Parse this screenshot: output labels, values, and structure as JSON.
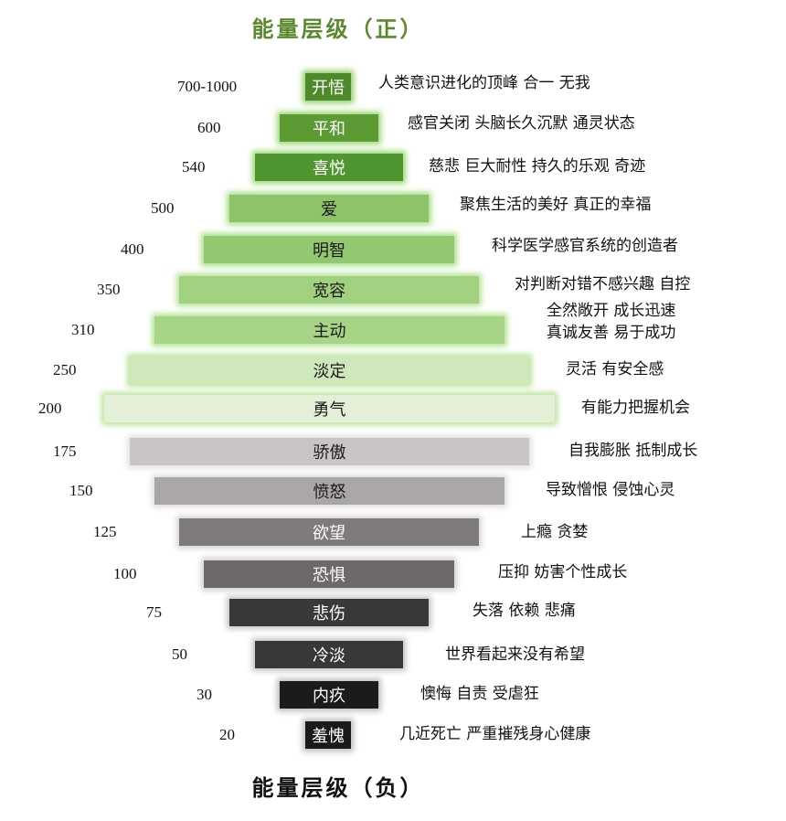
{
  "title_top": "能量层级（正）",
  "title_bottom": "能量层级（负）",
  "levels": [
    {
      "value": "700-1000",
      "name": "开悟",
      "desc": "人类意识进化的顶峰 合一 无我",
      "color": "#4e8a2a",
      "text": "#ffffff",
      "glow": "#8fd16a"
    },
    {
      "value": "600",
      "name": "平和",
      "desc": "感官关闭 头脑长久沉默 通灵状态",
      "color": "#5c9a34",
      "text": "#ffffff",
      "glow": "#9ad873"
    },
    {
      "value": "540",
      "name": "喜悦",
      "desc": "慈悲 巨大耐性 持久的乐观 奇迹",
      "color": "#4f9530",
      "text": "#ffffff",
      "glow": "#9ad873"
    },
    {
      "value": "500",
      "name": "爱",
      "desc": "聚焦生活的美好 真正的幸福",
      "color": "#8ec36a",
      "text": "#1a1a1a",
      "glow": "#a9df86"
    },
    {
      "value": "400",
      "name": "明智",
      "desc": "科学医学感官系统的创造者",
      "color": "#93c870",
      "text": "#1a1a1a",
      "glow": "#a9df86"
    },
    {
      "value": "350",
      "name": "宽容",
      "desc": "对判断对错不感兴趣 自控",
      "color": "#a2d081",
      "text": "#1a1a1a",
      "glow": "#b4e493"
    },
    {
      "value": "310",
      "name": "主动",
      "desc": "全然敞开 成长迅速",
      "desc2": "真诚友善 易于成功",
      "color": "#a8d488",
      "text": "#1a1a1a",
      "glow": "#b4e493"
    },
    {
      "value": "250",
      "name": "淡定",
      "desc": "灵活 有安全感",
      "color": "#cfe8bb",
      "text": "#1a1a1a",
      "glow": "#b9e49c"
    },
    {
      "value": "200",
      "name": "勇气",
      "desc": "有能力把握机会",
      "color": "#e3f0d7",
      "text": "#1a1a1a",
      "glow": "#b9e49c"
    },
    {
      "value": "175",
      "name": "骄傲",
      "desc": "自我膨胀 抵制成长",
      "color": "#c9c5c7",
      "text": "#1a1a1a",
      "glow": "#e2e2e2"
    },
    {
      "value": "150",
      "name": "愤怒",
      "desc": "导致憎恨 侵蚀心灵",
      "color": "#aaa5a7",
      "text": "#1a1a1a",
      "glow": "#dedede"
    },
    {
      "value": "125",
      "name": "欲望",
      "desc": "上瘾 贪婪",
      "color": "#7f7a7c",
      "text": "#ffffff",
      "glow": "#d6d6d6"
    },
    {
      "value": "100",
      "name": "恐惧",
      "desc": "压抑 妨害个性成长",
      "color": "#6d696b",
      "text": "#ffffff",
      "glow": "#d0d0d0"
    },
    {
      "value": "75",
      "name": "悲伤",
      "desc": "失落 依赖 悲痛",
      "color": "#3b3839",
      "text": "#ffffff",
      "glow": "#c6c6c6"
    },
    {
      "value": "50",
      "name": "冷淡",
      "desc": "世界看起来没有希望",
      "color": "#3a3738",
      "text": "#ffffff",
      "glow": "#c2c2c2"
    },
    {
      "value": "30",
      "name": "内疚",
      "desc": "懊悔 自责 受虐狂",
      "color": "#1c1a1b",
      "text": "#ffffff",
      "glow": "#bdbdbd"
    },
    {
      "value": "20",
      "name": "羞愧",
      "desc": "几近死亡 严重摧残身心健康",
      "color": "#1b191a",
      "text": "#ffffff",
      "glow": "#bbbbbb"
    }
  ]
}
